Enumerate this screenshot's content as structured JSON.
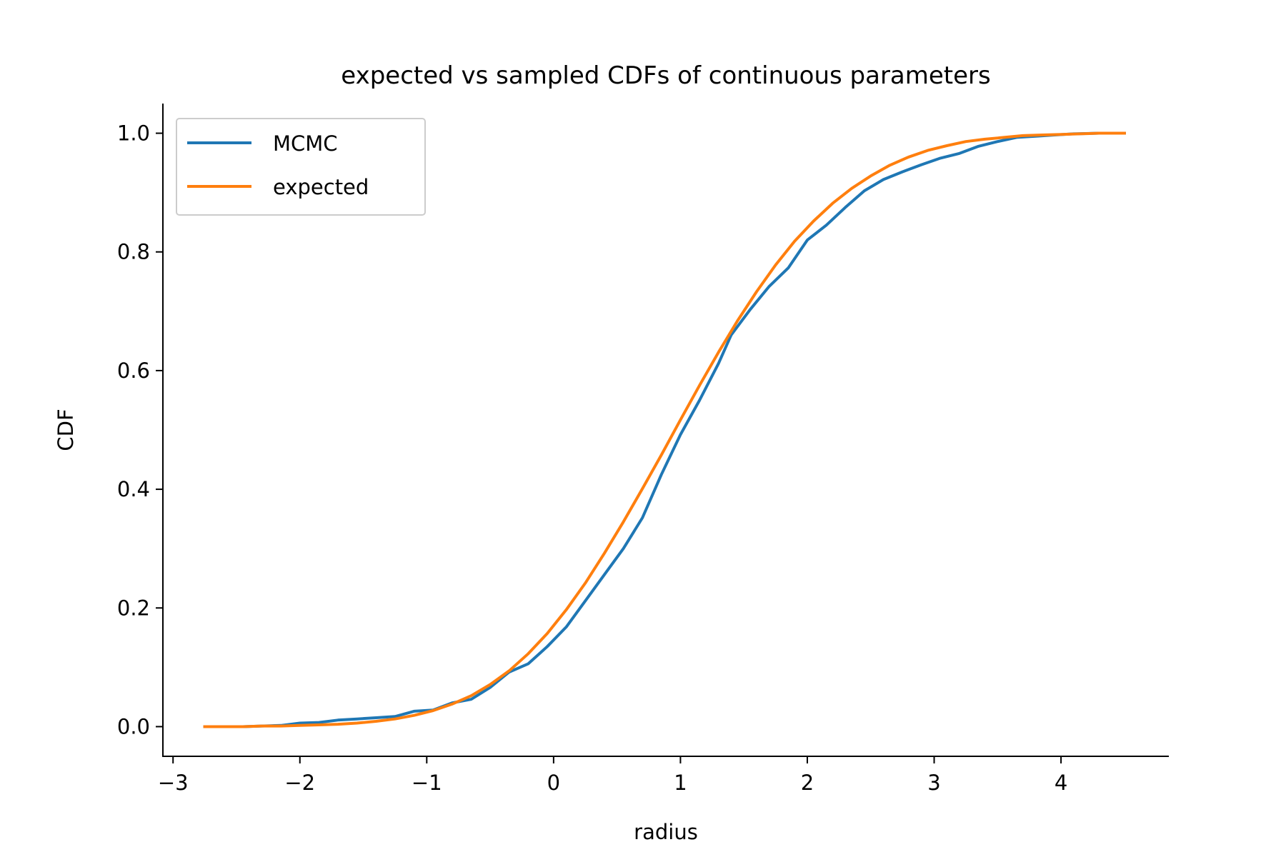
{
  "chart_data": {
    "type": "line",
    "title": "expected vs sampled CDFs of continuous parameters",
    "xlabel": "radius",
    "ylabel": "CDF",
    "xlim": [
      -3.08,
      4.85
    ],
    "ylim": [
      -0.05,
      1.05
    ],
    "xticks": [
      -3,
      -2,
      -1,
      0,
      1,
      2,
      3,
      4
    ],
    "xtick_labels": [
      "−3",
      "−2",
      "−1",
      "0",
      "1",
      "2",
      "3",
      "4"
    ],
    "yticks": [
      0.0,
      0.2,
      0.4,
      0.6,
      0.8,
      1.0
    ],
    "ytick_labels": [
      "0.0",
      "0.2",
      "0.4",
      "0.6",
      "0.8",
      "1.0"
    ],
    "grid": false,
    "legend_position": "upper-left",
    "series": [
      {
        "name": "MCMC",
        "color": "#1f77b4",
        "x": [
          -2.75,
          -2.6,
          -2.45,
          -2.3,
          -2.15,
          -2.0,
          -1.85,
          -1.7,
          -1.55,
          -1.4,
          -1.25,
          -1.1,
          -0.95,
          -0.8,
          -0.65,
          -0.5,
          -0.35,
          -0.2,
          -0.05,
          0.1,
          0.25,
          0.4,
          0.55,
          0.7,
          0.85,
          1.0,
          1.15,
          1.3,
          1.4,
          1.55,
          1.7,
          1.85,
          2.0,
          2.15,
          2.3,
          2.45,
          2.6,
          2.75,
          2.9,
          3.05,
          3.2,
          3.35,
          3.5,
          3.65,
          3.8,
          3.95,
          4.1,
          4.3,
          4.5
        ],
        "y": [
          0.0,
          0.0,
          0.0,
          0.001,
          0.002,
          0.006,
          0.007,
          0.011,
          0.013,
          0.015,
          0.017,
          0.026,
          0.028,
          0.04,
          0.046,
          0.066,
          0.092,
          0.106,
          0.135,
          0.168,
          0.212,
          0.256,
          0.3,
          0.352,
          0.425,
          0.492,
          0.55,
          0.612,
          0.66,
          0.703,
          0.742,
          0.773,
          0.82,
          0.845,
          0.875,
          0.903,
          0.922,
          0.935,
          0.947,
          0.958,
          0.966,
          0.978,
          0.986,
          0.993,
          0.995,
          0.997,
          0.999,
          1.0,
          1.0
        ]
      },
      {
        "name": "expected",
        "color": "#ff7f0e",
        "x": [
          -2.75,
          -2.6,
          -2.45,
          -2.3,
          -2.15,
          -2.0,
          -1.85,
          -1.7,
          -1.55,
          -1.4,
          -1.25,
          -1.1,
          -0.95,
          -0.8,
          -0.65,
          -0.5,
          -0.35,
          -0.2,
          -0.05,
          0.1,
          0.25,
          0.4,
          0.55,
          0.7,
          0.85,
          1.0,
          1.15,
          1.3,
          1.45,
          1.6,
          1.75,
          1.9,
          2.05,
          2.2,
          2.35,
          2.5,
          2.65,
          2.8,
          2.95,
          3.1,
          3.25,
          3.4,
          3.55,
          3.7,
          3.85,
          4.0,
          4.15,
          4.3,
          4.5
        ],
        "y": [
          0.0,
          0.0,
          0.0,
          0.001,
          0.001,
          0.002,
          0.003,
          0.004,
          0.006,
          0.009,
          0.013,
          0.019,
          0.027,
          0.038,
          0.052,
          0.071,
          0.094,
          0.123,
          0.157,
          0.197,
          0.242,
          0.292,
          0.345,
          0.401,
          0.458,
          0.517,
          0.575,
          0.631,
          0.684,
          0.733,
          0.778,
          0.818,
          0.852,
          0.882,
          0.907,
          0.928,
          0.946,
          0.96,
          0.971,
          0.979,
          0.986,
          0.99,
          0.993,
          0.996,
          0.997,
          0.998,
          0.999,
          1.0,
          1.0
        ]
      }
    ]
  }
}
